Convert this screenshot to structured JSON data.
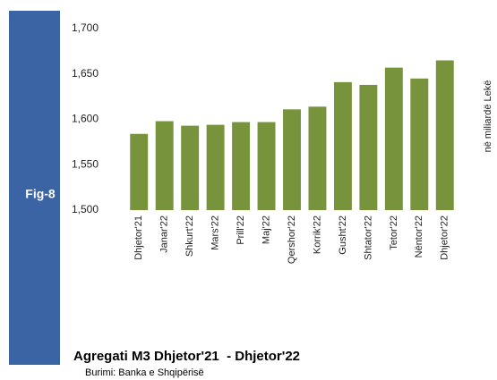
{
  "chart_data": {
    "type": "bar",
    "sidebar": "Fig-8",
    "title": "Agregati M3 Dhjetor'21  - Dhjetor'22",
    "source": "Burimi: Banka e Shqipërisë",
    "y_axis_label": "në miliardë Lekë",
    "categories": [
      "Dhjetor'21",
      "Janar'22",
      "Shkurt'22",
      "Mars'22",
      "Prill'22",
      "Maj'22",
      "Qershor'22",
      "Korrik'22",
      "Gusht'22",
      "Shtator'22",
      "Tetor'22",
      "Nëntor'22",
      "Dhjetor'22"
    ],
    "values": [
      1584,
      1598,
      1593,
      1594,
      1597,
      1597,
      1611,
      1614,
      1641,
      1638,
      1657,
      1645,
      1665
    ],
    "color": "#77933c",
    "ylim": [
      1500,
      1700
    ],
    "yticks": [
      {
        "value": 1500,
        "label": "1,500"
      },
      {
        "value": 1550,
        "label": "1,550"
      },
      {
        "value": 1600,
        "label": "1,600"
      },
      {
        "value": 1650,
        "label": "1,650"
      },
      {
        "value": 1700,
        "label": "1,700"
      }
    ],
    "grid": false
  }
}
